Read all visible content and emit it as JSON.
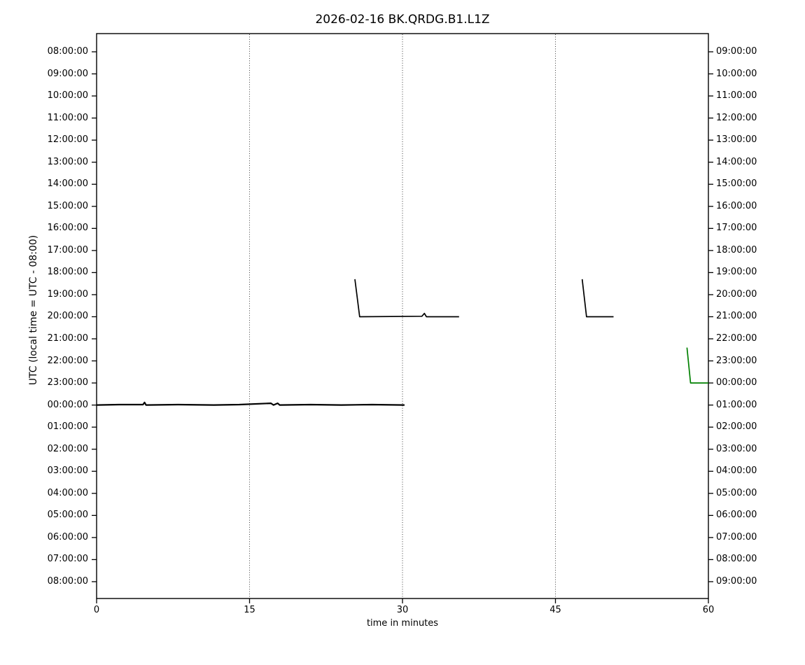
{
  "chart_data": {
    "type": "line",
    "chart_kind": "seismic-dayplot-helicorder",
    "title": "2026-02-16 BK.QRDG.B1.L1Z",
    "xlabel": "time in minutes",
    "ylabel": "UTC (local time = UTC - 08:00)",
    "xlim": [
      0,
      60
    ],
    "x_ticks": [
      0,
      15,
      30,
      45,
      60
    ],
    "x_tick_labels": [
      "0",
      "15",
      "30",
      "45",
      "60"
    ],
    "grid": {
      "vertical_minutes": [
        15,
        30,
        45
      ],
      "style": "dotted",
      "color": "#3c3c3c"
    },
    "minutes_per_row": 60,
    "rows": 25,
    "left_axis_tick_labels": [
      "08:00:00",
      "09:00:00",
      "10:00:00",
      "11:00:00",
      "12:00:00",
      "13:00:00",
      "14:00:00",
      "15:00:00",
      "16:00:00",
      "17:00:00",
      "18:00:00",
      "19:00:00",
      "20:00:00",
      "21:00:00",
      "22:00:00",
      "23:00:00",
      "00:00:00",
      "01:00:00",
      "02:00:00",
      "03:00:00",
      "04:00:00",
      "05:00:00",
      "06:00:00",
      "07:00:00",
      "08:00:00"
    ],
    "right_axis_tick_labels": [
      "09:00:00",
      "10:00:00",
      "11:00:00",
      "12:00:00",
      "13:00:00",
      "14:00:00",
      "15:00:00",
      "16:00:00",
      "17:00:00",
      "18:00:00",
      "19:00:00",
      "20:00:00",
      "21:00:00",
      "22:00:00",
      "23:00:00",
      "00:00:00",
      "01:00:00",
      "02:00:00",
      "03:00:00",
      "04:00:00",
      "05:00:00",
      "06:00:00",
      "07:00:00",
      "08:00:00",
      "09:00:00"
    ],
    "colors": {
      "background": "#ffffff",
      "axis": "#000000",
      "trace_default": "#000000",
      "trace_highlight": "#008000"
    },
    "traces": [
      {
        "name": "segment-row-00-00-utc",
        "row_index": 16,
        "row_start_label": "00:00:00",
        "color": "#000000",
        "width": 2.2,
        "points": [
          [
            0,
            0
          ],
          [
            2.2,
            0.02
          ],
          [
            4.55,
            0.02
          ],
          [
            4.7,
            0.12
          ],
          [
            4.85,
            0
          ],
          [
            8,
            0.02
          ],
          [
            11.5,
            0
          ],
          [
            14,
            0.02
          ],
          [
            17.1,
            0.08
          ],
          [
            17.35,
            0
          ],
          [
            17.75,
            0.08
          ],
          [
            17.95,
            0
          ],
          [
            21,
            0.02
          ],
          [
            24,
            0
          ],
          [
            27,
            0.02
          ],
          [
            30.2,
            0
          ]
        ]
      },
      {
        "name": "event-spike-20-25-utc",
        "row_index": 12,
        "row_start_label": "20:00:00",
        "color": "#000000",
        "width": 1.7,
        "points": [
          [
            25.33,
            1.7
          ],
          [
            25.8,
            0
          ],
          [
            31.9,
            0.02
          ],
          [
            32.15,
            0.15
          ],
          [
            32.35,
            0
          ],
          [
            35.55,
            0
          ]
        ]
      },
      {
        "name": "event-spike-20-48-utc",
        "row_index": 12,
        "row_start_label": "20:00:00",
        "color": "#000000",
        "width": 1.7,
        "points": [
          [
            47.62,
            1.7
          ],
          [
            48.05,
            0
          ],
          [
            50.7,
            0
          ]
        ]
      },
      {
        "name": "event-spike-23-58-utc",
        "row_index": 15,
        "row_start_label": "23:00:00",
        "color": "#008000",
        "width": 1.7,
        "points": [
          [
            57.9,
            1.6
          ],
          [
            58.25,
            0
          ],
          [
            60,
            0
          ]
        ]
      }
    ]
  }
}
